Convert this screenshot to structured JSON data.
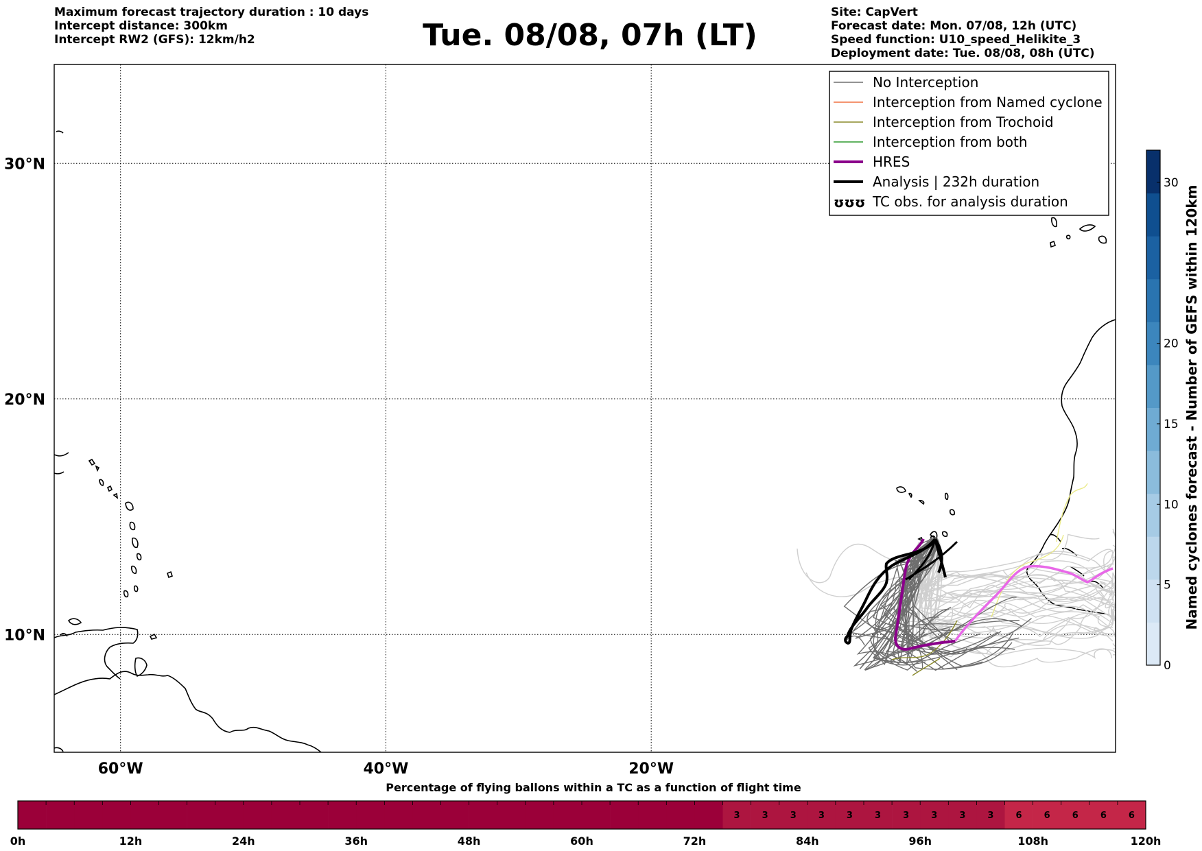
{
  "header": {
    "left": [
      "Maximum forecast trajectory duration : 10 days",
      "Intercept distance: 300km",
      "Intercept RW2 (GFS):  12km/h2"
    ],
    "title": "Tue. 08/08, 07h (LT)",
    "right": [
      "Site: CapVert",
      "Forecast date: Mon. 07/08, 12h (UTC)",
      "Speed function: U10_speed_Helikite_3",
      "Deployment date: Tue. 08/08, 08h (UTC)"
    ]
  },
  "map": {
    "lon_range": [
      -65,
      15
    ],
    "lat_range": [
      5,
      34.2
    ],
    "lat_ticks": [
      {
        "lat": 30,
        "label": "30°N"
      },
      {
        "lat": 20,
        "label": "20°N"
      },
      {
        "lat": 10,
        "label": "10°N"
      }
    ],
    "lon_ticks": [
      {
        "lon": -60,
        "label": "60°W"
      },
      {
        "lon": -40,
        "label": "40°W"
      },
      {
        "lon": -20,
        "label": "20°W"
      }
    ],
    "colors": {
      "no_interception": "#6e6e6e",
      "named_cyclone": "#f07040",
      "trochoid": "#8a8a2a",
      "both": "#2e9a2e",
      "hres": "#8b008b",
      "analysis": "#000000",
      "hres_future": "#e868e8",
      "ensemble_future": "#cfcfcf",
      "trochoid_future": "#eaea88"
    }
  },
  "legend": {
    "entries": [
      {
        "key": "no_interception",
        "label": "No Interception"
      },
      {
        "key": "named_cyclone",
        "label": "Interception from Named cyclone"
      },
      {
        "key": "trochoid",
        "label": "Interception from Trochoid"
      },
      {
        "key": "both",
        "label": "Interception from both"
      },
      {
        "key": "hres",
        "label": "HRES"
      },
      {
        "key": "analysis",
        "label": "Analysis | 232h duration"
      },
      {
        "key": "tc_obs",
        "label": "TC obs. for analysis duration"
      }
    ],
    "tc_symbol": "ʊʊʊ"
  },
  "colorbar": {
    "title": "Named cyclones forecast - Number of GEFS within 120km",
    "min": 0,
    "max": 32,
    "ticks": [
      0,
      5,
      10,
      15,
      20,
      30
    ],
    "colors": [
      "#dce9f6",
      "#cfe1f2",
      "#bcd7ec",
      "#a6cbe5",
      "#8bbcdc",
      "#6fabd3",
      "#5499c8",
      "#3c86bd",
      "#2a74b0",
      "#1b61a2",
      "#0f4f90",
      "#08306b"
    ]
  },
  "timeline": {
    "title": "Percentage of flying ballons within a TC as a function of flight time",
    "ticks": [
      "0h",
      "12h",
      "24h",
      "36h",
      "48h",
      "60h",
      "72h",
      "84h",
      "96h",
      "108h",
      "120h"
    ],
    "cells": [
      0,
      0,
      0,
      0,
      0,
      0,
      0,
      0,
      0,
      0,
      0,
      0,
      0,
      0,
      0,
      0,
      0,
      0,
      0,
      0,
      0,
      0,
      0,
      0,
      0,
      3,
      3,
      3,
      3,
      3,
      3,
      3,
      3,
      3,
      3,
      6,
      6,
      6,
      6,
      6
    ],
    "colors": {
      "0": "#9b0039",
      "3": "#ad1540",
      "6": "#c42648"
    }
  }
}
